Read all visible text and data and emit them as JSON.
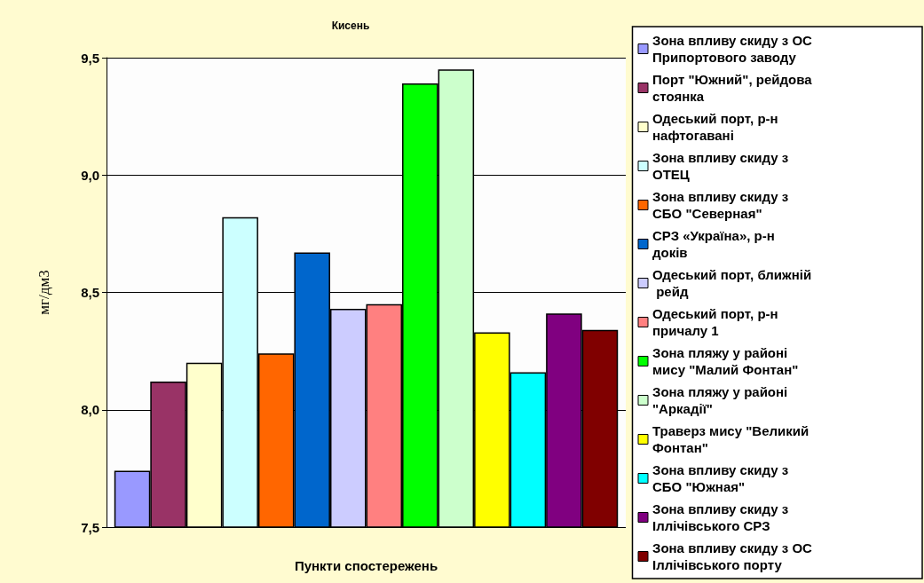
{
  "chart_data": {
    "type": "bar",
    "title": "Кисень",
    "xlabel": "Пункти спостережень",
    "ylabel": "мг/дм3",
    "categories": [
      null
    ],
    "series": [
      {
        "name": "Зона впливу скиду з ОС Припортового заводу",
        "color": "#9999ff",
        "values": [
          7.74
        ]
      },
      {
        "name": "Порт \"Южний\", рейдова стоянка",
        "color": "#993366",
        "values": [
          8.12
        ]
      },
      {
        "name": "Одеський порт, р-н нафтогавані",
        "color": "#ffffcc",
        "values": [
          8.2
        ]
      },
      {
        "name": "Зона впливу скиду з ОТЕЦ",
        "color": "#ccffff",
        "values": [
          8.82
        ]
      },
      {
        "name": "Зона впливу скиду з СБО \"Северная\"",
        "color": "#ff6600",
        "values": [
          8.24
        ]
      },
      {
        "name": "СРЗ «Україна», р-н доків",
        "color": "#0066cc",
        "values": [
          8.67
        ]
      },
      {
        "name": "Одеський порт, ближній рейд",
        "color": "#ccccff",
        "values": [
          8.43
        ]
      },
      {
        "name": "Одеський порт, р-н причалу 1",
        "color": "#ff8080",
        "values": [
          8.45
        ]
      },
      {
        "name": "Зона пляжу у районі мису \"Малий Фонтан\"",
        "color": "#00ff00",
        "values": [
          9.39
        ]
      },
      {
        "name": "Зона пляжу у районі \"Аркадії\"",
        "color": "#ccffcc",
        "values": [
          9.45
        ]
      },
      {
        "name": "Траверз мису \"Великий Фонтан\"",
        "color": "#ffff00",
        "values": [
          8.33
        ]
      },
      {
        "name": "Зона впливу скиду з СБО \"Южная\"",
        "color": "#00ffff",
        "values": [
          8.16
        ]
      },
      {
        "name": "Зона впливу скиду з Іллічівського СРЗ",
        "color": "#800080",
        "values": [
          8.41
        ]
      },
      {
        "name": "Зона впливу скиду з ОС Іллічівського порту",
        "color": "#800000",
        "values": [
          8.34
        ]
      }
    ],
    "ylim": [
      7.5,
      9.5
    ],
    "yticks": [
      {
        "value": 7.5,
        "label": "7,5"
      },
      {
        "value": 8,
        "label": "8,0"
      },
      {
        "value": 8.5,
        "label": "8,5"
      },
      {
        "value": 9,
        "label": "9,0"
      },
      {
        "value": 9.5,
        "label": "9,5"
      }
    ],
    "grid": "y",
    "legend": "right"
  }
}
